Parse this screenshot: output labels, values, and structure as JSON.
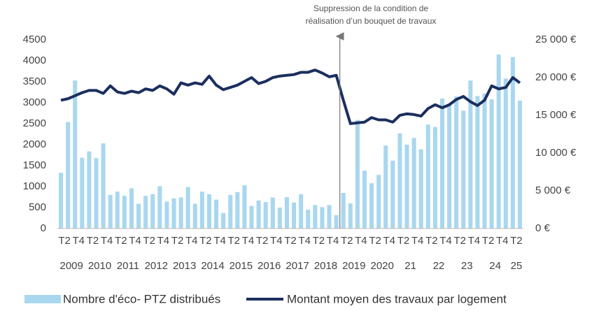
{
  "chart_data": {
    "type": "bar-line",
    "annotation": [
      "Suppression de la condition de",
      "réalisation d’un bouquet de travaux"
    ],
    "categories": [
      null,
      "T2",
      null,
      "T4",
      null,
      "T2",
      null,
      "T4",
      null,
      "T2",
      null,
      "T4",
      null,
      "T2",
      null,
      "T4",
      null,
      "T2",
      null,
      "T4",
      null,
      "T2",
      null,
      "T4",
      null,
      "T2",
      null,
      "T4",
      null,
      "T2",
      null,
      "T4",
      null,
      "T2",
      null,
      "T4",
      null,
      "T2",
      null,
      "T4",
      null,
      "T2",
      null,
      "T4",
      null,
      "T2",
      null,
      "T4",
      null,
      "T2",
      null,
      "T4",
      null,
      "T2",
      null,
      "T4",
      null,
      "T2",
      null,
      "T4",
      null,
      "T2",
      null,
      "T4",
      null,
      "T2"
    ],
    "years": [
      "2009",
      "2010",
      "2011",
      "2012",
      "2013",
      "2014",
      "2015",
      "2016",
      "2017",
      "2018",
      "2019",
      "2020",
      "21",
      "22",
      "23",
      "24",
      "25"
    ],
    "series": [
      {
        "name": "Nombre d'éco- PTZ distribués",
        "color": "#a9d7ef",
        "axis": "y",
        "values": [
          1330,
          2540,
          3530,
          1690,
          1840,
          1680,
          2030,
          800,
          880,
          780,
          960,
          590,
          780,
          820,
          1010,
          640,
          720,
          740,
          990,
          590,
          880,
          820,
          690,
          370,
          800,
          870,
          1030,
          540,
          670,
          630,
          740,
          500,
          750,
          620,
          820,
          450,
          560,
          510,
          560,
          320,
          850,
          600,
          2590,
          1380,
          1080,
          1280,
          1980,
          1620,
          2270,
          2000,
          2160,
          1890,
          2480,
          2420,
          3100,
          2960,
          3150,
          2810,
          3530,
          3160,
          3220,
          3080,
          4150,
          3580,
          4090,
          3050
        ]
      },
      {
        "name": "Montant moyen des travaux par logement",
        "color": "#1b2e5e",
        "axis": "y2",
        "values": [
          17000,
          17200,
          17600,
          18000,
          18300,
          18300,
          17900,
          18900,
          18100,
          17900,
          18200,
          18000,
          18500,
          18300,
          18900,
          18500,
          17800,
          19300,
          19000,
          19300,
          19100,
          20200,
          19000,
          18400,
          18700,
          19000,
          19500,
          20000,
          19200,
          19500,
          20000,
          20200,
          20300,
          20400,
          20700,
          20700,
          21000,
          20600,
          20100,
          20300,
          17000,
          13900,
          14000,
          14100,
          14700,
          14400,
          14400,
          14100,
          15000,
          15200,
          15100,
          14900,
          15900,
          16400,
          16000,
          16400,
          17100,
          17500,
          16800,
          16300,
          17000,
          18900,
          18500,
          18700,
          20000,
          19300
        ]
      }
    ],
    "ylim": [
      0,
      4500
    ],
    "yticks": [
      0,
      500,
      1000,
      1500,
      2000,
      2500,
      3000,
      3500,
      4000,
      4500
    ],
    "y2lim": [
      0,
      25000
    ],
    "y2ticks": [
      {
        "value": 0,
        "label": "0 €"
      },
      {
        "value": 5000,
        "label": "5 000 €"
      },
      {
        "value": 10000,
        "label": "10 000 €"
      },
      {
        "value": 15000,
        "label": "15 000 €"
      },
      {
        "value": 20000,
        "label": "20 000 €"
      },
      {
        "value": 25000,
        "label": "25 000 €"
      }
    ],
    "grid": false
  }
}
